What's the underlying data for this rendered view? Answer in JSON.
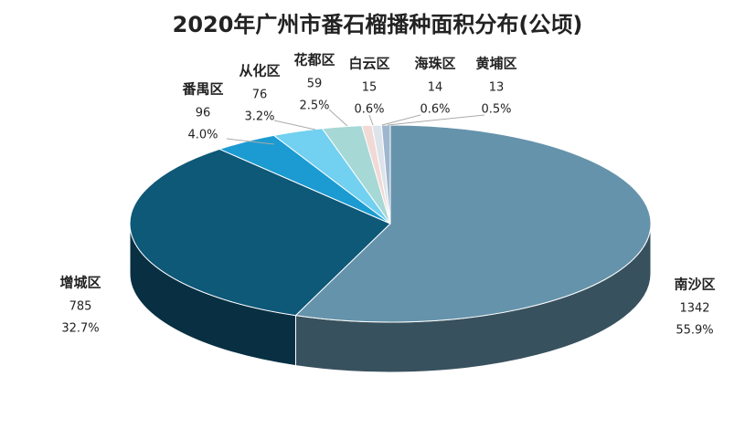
{
  "chart_data": {
    "type": "pie",
    "title": "2020年广州市番石榴播种面积分布(公顷)",
    "categories": [
      "南沙区",
      "增城区",
      "番禺区",
      "从化区",
      "花都区",
      "白云区",
      "海珠区",
      "黄埔区"
    ],
    "values": [
      1342,
      785,
      96,
      76,
      59,
      15,
      14,
      13
    ],
    "percent_labels": [
      "55.9%",
      "32.7%",
      "4.0%",
      "3.2%",
      "2.5%",
      "0.6%",
      "0.6%",
      "0.5%"
    ],
    "colors": [
      "#6593ab",
      "#0e5878",
      "#1b9bd1",
      "#72d0f0",
      "#a6d8d6",
      "#f1d9d6",
      "#dde3ea",
      "#9fb6cf"
    ]
  }
}
